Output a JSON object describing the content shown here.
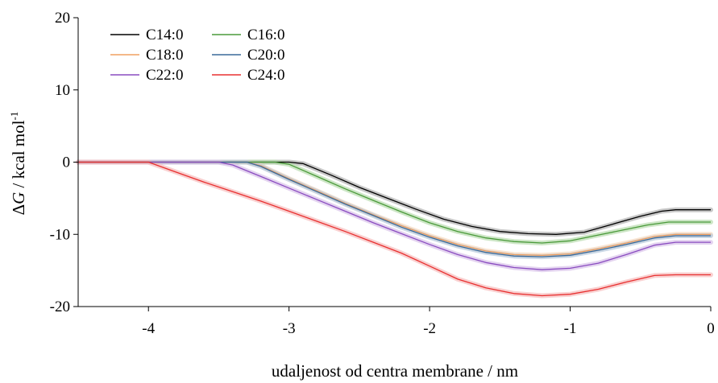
{
  "chart_data": {
    "type": "line",
    "xlabel": "udaljenost od centra membrane / nm",
    "ylabel_parts": {
      "prefix": "Δ",
      "symbol": "G",
      "rest": " / kcal mol",
      "sup": "-1"
    },
    "xlim": [
      -4.5,
      0
    ],
    "ylim": [
      -20,
      20
    ],
    "xticks": [
      "-4",
      "-3",
      "-2",
      "-1",
      "0"
    ],
    "yticks": [
      "20",
      "10",
      "0",
      "-10",
      "-20"
    ],
    "legend_placement": "top-left",
    "grid": false,
    "series": [
      {
        "name": "C14:0",
        "color": "#000000",
        "band": "#b0b0b0",
        "x": [
          -4.5,
          -3.0,
          -2.9,
          -2.7,
          -2.5,
          -2.3,
          -2.1,
          -1.9,
          -1.7,
          -1.5,
          -1.3,
          -1.1,
          -0.9,
          -0.7,
          -0.5,
          -0.35,
          -0.25,
          0
        ],
        "y": [
          0,
          0,
          -0.2,
          -1.8,
          -3.5,
          -5.0,
          -6.5,
          -7.9,
          -8.9,
          -9.6,
          -9.9,
          -10.0,
          -9.7,
          -8.6,
          -7.5,
          -6.8,
          -6.6,
          -6.6
        ]
      },
      {
        "name": "C16:0",
        "color": "#4a9a3a",
        "band": "#b8dcae",
        "x": [
          -4.5,
          -3.1,
          -3.0,
          -2.8,
          -2.6,
          -2.4,
          -2.2,
          -2.0,
          -1.8,
          -1.6,
          -1.4,
          -1.2,
          -1.0,
          -0.8,
          -0.6,
          -0.45,
          -0.3,
          0
        ],
        "y": [
          0,
          0,
          -0.3,
          -2.0,
          -3.7,
          -5.3,
          -6.9,
          -8.4,
          -9.6,
          -10.5,
          -11.0,
          -11.2,
          -10.9,
          -10.1,
          -9.3,
          -8.7,
          -8.3,
          -8.3
        ]
      },
      {
        "name": "C18:0",
        "color": "#f0a060",
        "band": "#f8d8bc",
        "x": [
          -4.5,
          -3.3,
          -3.2,
          -3.0,
          -2.8,
          -2.6,
          -2.4,
          -2.2,
          -2.0,
          -1.8,
          -1.6,
          -1.4,
          -1.2,
          -1.0,
          -0.8,
          -0.6,
          -0.4,
          -0.25,
          0
        ],
        "y": [
          0,
          0,
          -0.5,
          -2.3,
          -4.0,
          -5.7,
          -7.3,
          -8.8,
          -10.2,
          -11.4,
          -12.3,
          -12.8,
          -12.9,
          -12.7,
          -12.0,
          -11.2,
          -10.3,
          -10.0,
          -10.0
        ]
      },
      {
        "name": "C20:0",
        "color": "#3a6a9a",
        "band": "#b4c8dc",
        "x": [
          -4.5,
          -3.3,
          -3.2,
          -3.0,
          -2.8,
          -2.6,
          -2.4,
          -2.2,
          -2.0,
          -1.8,
          -1.6,
          -1.4,
          -1.2,
          -1.0,
          -0.8,
          -0.6,
          -0.4,
          -0.25,
          0
        ],
        "y": [
          0,
          0,
          -0.6,
          -2.4,
          -4.1,
          -5.8,
          -7.4,
          -9.0,
          -10.4,
          -11.6,
          -12.5,
          -13.0,
          -13.1,
          -12.9,
          -12.2,
          -11.4,
          -10.5,
          -10.2,
          -10.2
        ]
      },
      {
        "name": "C22:0",
        "color": "#8a4cc0",
        "band": "#d8c2ea",
        "x": [
          -4.5,
          -3.5,
          -3.4,
          -3.2,
          -3.0,
          -2.8,
          -2.6,
          -2.4,
          -2.2,
          -2.0,
          -1.8,
          -1.6,
          -1.4,
          -1.2,
          -1.0,
          -0.8,
          -0.6,
          -0.4,
          -0.25,
          0
        ],
        "y": [
          0,
          0,
          -0.4,
          -2.0,
          -3.6,
          -5.2,
          -6.8,
          -8.4,
          -9.9,
          -11.4,
          -12.8,
          -13.9,
          -14.6,
          -14.9,
          -14.7,
          -14.0,
          -12.8,
          -11.5,
          -11.1,
          -11.1
        ]
      },
      {
        "name": "C24:0",
        "color": "#e83030",
        "band": "#f6bcbc",
        "x": [
          -4.5,
          -4.0,
          -3.8,
          -3.6,
          -3.4,
          -3.2,
          -3.0,
          -2.8,
          -2.6,
          -2.4,
          -2.2,
          -2.0,
          -1.8,
          -1.6,
          -1.4,
          -1.2,
          -1.0,
          -0.8,
          -0.6,
          -0.4,
          -0.25,
          0
        ],
        "y": [
          0,
          0,
          -1.4,
          -2.8,
          -4.1,
          -5.4,
          -6.8,
          -8.2,
          -9.6,
          -11.1,
          -12.6,
          -14.4,
          -16.2,
          -17.4,
          -18.2,
          -18.5,
          -18.3,
          -17.6,
          -16.6,
          -15.7,
          -15.6,
          -15.6
        ]
      }
    ]
  }
}
